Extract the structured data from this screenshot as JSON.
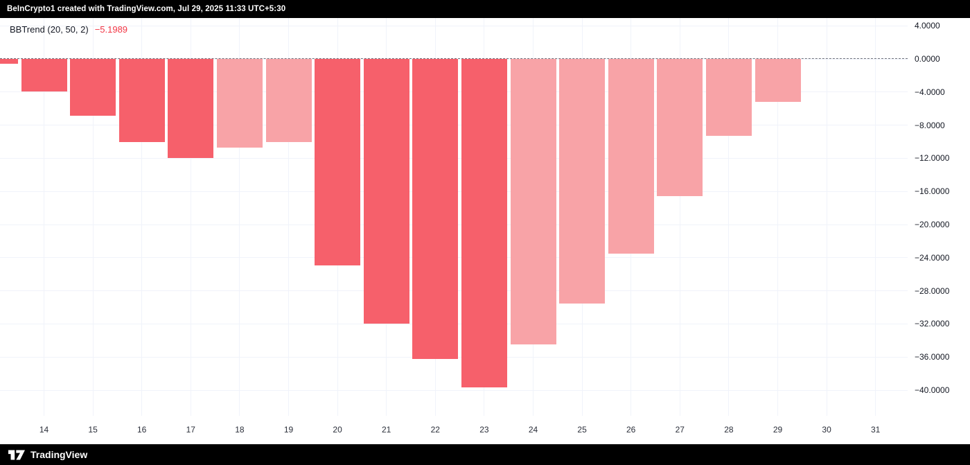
{
  "top_bar": {
    "attribution": "BeInCrypto1 created with TradingView.com, Jul 29, 2025 11:33 UTC+5:30"
  },
  "legend": {
    "indicator": "BBTrend (20, 50, 2)",
    "value": "−5.1989",
    "value_color": "#f23645",
    "title_color": "#131722"
  },
  "footer": {
    "brand": "TradingView"
  },
  "chart_data": {
    "type": "bar",
    "title": "BBTrend (20, 50, 2)",
    "xlabel": "",
    "ylabel": "",
    "x": [
      13,
      14,
      15,
      16,
      17,
      18,
      19,
      20,
      21,
      22,
      23,
      24,
      25,
      26,
      27,
      28,
      29
    ],
    "values": [
      -0.6,
      -3.9,
      -6.9,
      -10.0,
      -12.0,
      -10.7,
      -10.0,
      -24.9,
      -32.0,
      -36.2,
      -39.7,
      -34.5,
      -29.5,
      -23.5,
      -16.6,
      -9.3,
      -5.1989
    ],
    "bar_styles": [
      "strong",
      "strong",
      "strong",
      "strong",
      "strong",
      "weak",
      "weak",
      "strong",
      "strong",
      "strong",
      "strong",
      "weak",
      "weak",
      "weak",
      "weak",
      "weak",
      "weak"
    ],
    "colors": {
      "strong": "#f6606b",
      "weak": "#f8a3a7"
    },
    "x_ticks": [
      14,
      15,
      16,
      17,
      18,
      19,
      20,
      21,
      22,
      23,
      24,
      25,
      26,
      27,
      28,
      29,
      30,
      31
    ],
    "y_ticks": [
      4,
      0,
      -4,
      -8,
      -12,
      -16,
      -20,
      -24,
      -28,
      -32,
      -36,
      -40
    ],
    "y_tick_labels": [
      "4.0000",
      "0.0000",
      "−4.0000",
      "−8.0000",
      "−12.0000",
      "−16.0000",
      "−20.0000",
      "−24.0000",
      "−28.0000",
      "−32.0000",
      "−36.0000",
      "−40.0000"
    ],
    "ylim": [
      -43.1,
      4.9
    ],
    "grid": true,
    "zero_line": "dashed",
    "legend_position": "top-left"
  }
}
